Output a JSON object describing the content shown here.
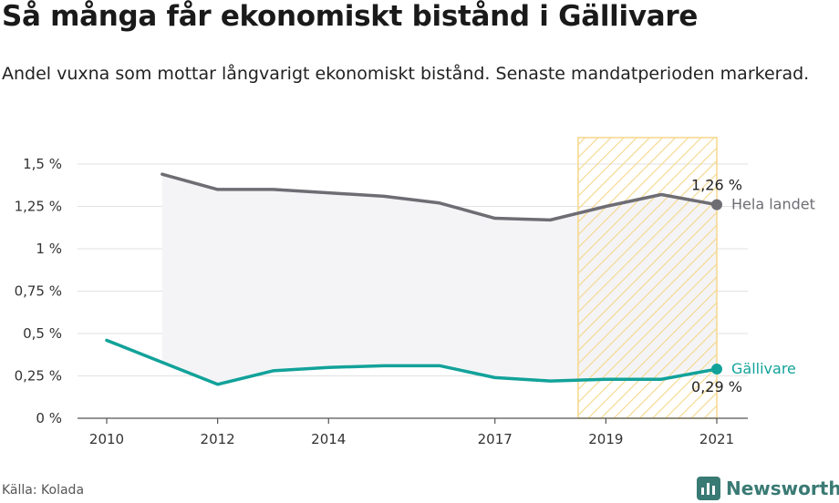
{
  "header": {
    "title": "Så många får ekonomiskt bistånd i Gällivare",
    "subtitle": "Andel vuxna som mottar långvarigt ekonomiskt bistånd. Senaste mandatperioden markerad."
  },
  "footer": {
    "source": "Källa: Kolada",
    "brand": "Newsworthy",
    "brand_icon": "newsworthy-logo-icon"
  },
  "colors": {
    "national": "#6e6d74",
    "local": "#12a29a",
    "highlight_stroke": "#f5d78a",
    "band_fill": "#f4f4f6",
    "grid": "#e2e2e2"
  },
  "chart_data": {
    "type": "line",
    "x": [
      2010,
      2011,
      2012,
      2013,
      2014,
      2015,
      2016,
      2017,
      2018,
      2019,
      2020,
      2021
    ],
    "x_tick_labels": [
      "2010",
      "2012",
      "2014",
      "2017",
      "2019",
      "2021"
    ],
    "y_tick_labels": [
      "0 %",
      "0,25 %",
      "0,5 %",
      "0,75 %",
      "1 %",
      "1,25 %",
      "1,5 %"
    ],
    "ylim": [
      0,
      1.5
    ],
    "xlim": [
      2010,
      2021
    ],
    "grid": true,
    "highlight_period": [
      2018.5,
      2021
    ],
    "series": [
      {
        "name": "Hela landet",
        "end_label": "1,26 %",
        "values": [
          null,
          1.44,
          1.35,
          1.35,
          1.33,
          1.31,
          1.27,
          1.18,
          1.17,
          1.25,
          1.32,
          1.26
        ]
      },
      {
        "name": "Gällivare",
        "end_label": "0,29 %",
        "values": [
          0.46,
          0.33,
          0.2,
          0.28,
          0.3,
          0.31,
          0.31,
          0.24,
          0.22,
          0.23,
          0.23,
          0.29
        ]
      }
    ]
  }
}
